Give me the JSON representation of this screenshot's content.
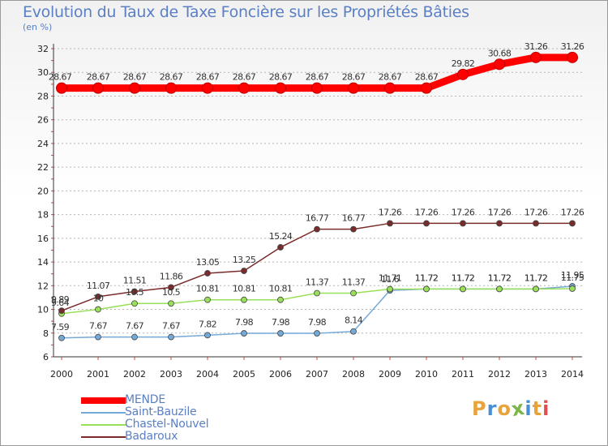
{
  "chart_data": {
    "type": "line",
    "title": "Evolution du Taux de Taxe Foncière sur les Propriétés Bâties",
    "ylabel": "(en %)",
    "xlabel": "",
    "ylim": [
      6,
      32
    ],
    "ytick_step": 2,
    "grid": "horizontal dashed",
    "legend_position": "bottom-left",
    "categories": [
      "2000",
      "2001",
      "2002",
      "2003",
      "2004",
      "2005",
      "2006",
      "2007",
      "2008",
      "2009",
      "2010",
      "2011",
      "2012",
      "2013",
      "2014"
    ],
    "series": [
      {
        "name": "MENDE",
        "color": "#ff0000",
        "values": [
          28.67,
          28.67,
          28.67,
          28.67,
          28.67,
          28.67,
          28.67,
          28.67,
          28.67,
          28.67,
          28.67,
          29.82,
          30.68,
          31.26,
          31.26
        ],
        "labels": [
          "28.67",
          "28.67",
          "28.67",
          "28.67",
          "28.67",
          "28.67",
          "28.67",
          "28.67",
          "28.67",
          "28.67",
          "28.67",
          "29.82",
          "30.68",
          "31.26",
          "31.26"
        ]
      },
      {
        "name": "Saint-Bauzile",
        "color": "#74a9d8",
        "values": [
          7.59,
          7.67,
          7.67,
          7.67,
          7.82,
          7.98,
          7.98,
          7.98,
          8.14,
          11.6,
          11.72,
          11.72,
          11.72,
          11.72,
          11.95
        ],
        "labels": [
          "7.59",
          "7.67",
          "7.67",
          "7.67",
          "7.82",
          "7.98",
          "7.98",
          "7.98",
          "8.14",
          "11.6",
          "11.72",
          "11.72",
          "11.72",
          "11.72",
          "11.95"
        ]
      },
      {
        "name": "Chastel-Nouvel",
        "color": "#99e05a",
        "values": [
          9.64,
          10,
          10.5,
          10.5,
          10.81,
          10.81,
          10.81,
          11.37,
          11.37,
          11.71,
          11.72,
          11.72,
          11.72,
          11.72,
          11.75
        ],
        "labels": [
          "9.64",
          "10",
          "10.5",
          "10.5",
          "10.81",
          "10.81",
          "10.81",
          "11.37",
          "11.37",
          "11.71",
          "11.72",
          "11.72",
          "11.72",
          "11.72",
          "11.75"
        ]
      },
      {
        "name": "Badaroux",
        "color": "#7a2b2b",
        "values": [
          9.89,
          11.07,
          11.51,
          11.86,
          13.05,
          13.25,
          15.24,
          16.77,
          16.77,
          17.26,
          17.26,
          17.26,
          17.26,
          17.26,
          17.26
        ],
        "labels": [
          "9.89",
          "11.07",
          "11.51",
          "11.86",
          "13.05",
          "13.25",
          "15.24",
          "16.77",
          "16.77",
          "17.26",
          "17.26",
          "17.26",
          "17.26",
          "17.26",
          "17.26"
        ]
      }
    ]
  },
  "logo": {
    "letters": [
      "P",
      "r",
      "o",
      "x",
      "i",
      "t",
      "i"
    ],
    "colors": [
      "#e8a33a",
      "#4a8fd4",
      "#e8a33a",
      "#7ab648",
      "#4a8fd4",
      "#e8a33a",
      "#e05050"
    ]
  }
}
